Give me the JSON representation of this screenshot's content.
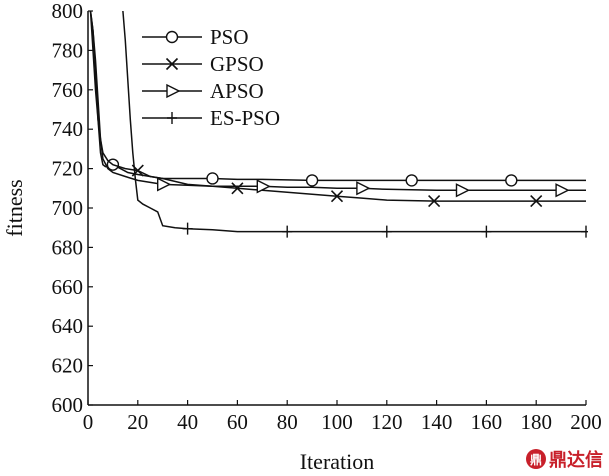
{
  "chart_data": {
    "type": "line",
    "xlabel": "Iteration",
    "ylabel": "fitness",
    "xlim": [
      0,
      200
    ],
    "ylim": [
      600,
      800
    ],
    "xticks": [
      0,
      20,
      40,
      60,
      80,
      100,
      120,
      140,
      160,
      180,
      200
    ],
    "yticks": [
      600,
      620,
      640,
      660,
      680,
      700,
      720,
      740,
      760,
      780,
      800
    ],
    "legend_position": "top-center",
    "grid": false,
    "series": [
      {
        "name": "PSO",
        "marker": "circle",
        "x": [
          1,
          2,
          3,
          4,
          5,
          6,
          7,
          8,
          10,
          13,
          16,
          20,
          25,
          30,
          40,
          50,
          60,
          70,
          90,
          110,
          130,
          150,
          170,
          190,
          200
        ],
        "y": [
          800,
          790,
          770,
          745,
          728,
          722,
          721,
          721,
          722,
          720,
          718,
          717,
          716,
          715,
          715,
          715,
          714.5,
          714.5,
          714,
          714,
          714,
          714,
          714,
          714,
          714
        ],
        "marker_x": [
          10,
          50,
          90,
          130,
          170
        ]
      },
      {
        "name": "GPSO",
        "marker": "x",
        "x": [
          1,
          2,
          3,
          4,
          5,
          6,
          8,
          10,
          15,
          20,
          25,
          30,
          40,
          50,
          60,
          70,
          80,
          90,
          100,
          110,
          120,
          140,
          160,
          180,
          200
        ],
        "y": [
          800,
          790,
          775,
          755,
          735,
          728,
          724,
          722,
          720,
          719,
          716,
          715,
          712,
          711,
          710,
          709,
          708,
          707,
          706,
          705,
          704,
          703.5,
          703.5,
          703.5,
          703.5
        ],
        "marker_x": [
          20,
          60,
          100,
          139,
          180
        ]
      },
      {
        "name": "APSO",
        "marker": "triangle-right",
        "x": [
          1,
          2,
          3,
          4,
          5,
          6,
          8,
          10,
          15,
          20,
          30,
          40,
          50,
          60,
          70,
          80,
          90,
          100,
          110,
          120,
          140,
          160,
          180,
          200
        ],
        "y": [
          800,
          780,
          760,
          745,
          735,
          725,
          720,
          718,
          716,
          714,
          712,
          711.5,
          711,
          711,
          711,
          710.5,
          710.5,
          710,
          710,
          709.5,
          709,
          709,
          709,
          709
        ],
        "marker_x": [
          30,
          70,
          110,
          150,
          190
        ]
      },
      {
        "name": "ES-PSO",
        "marker": "plus",
        "x": [
          14,
          15,
          16,
          17,
          18,
          19,
          20,
          22,
          25,
          28,
          30,
          35,
          40,
          50,
          60,
          80,
          100,
          140,
          200
        ],
        "y": [
          800,
          785,
          765,
          745,
          728,
          715,
          704,
          702,
          700,
          698,
          691,
          690,
          689.5,
          689,
          688,
          688,
          688,
          688,
          688
        ],
        "marker_x": [
          40,
          80,
          120,
          160,
          200
        ]
      }
    ]
  },
  "watermark": {
    "seal": "鼎",
    "text": "鼎达信"
  }
}
